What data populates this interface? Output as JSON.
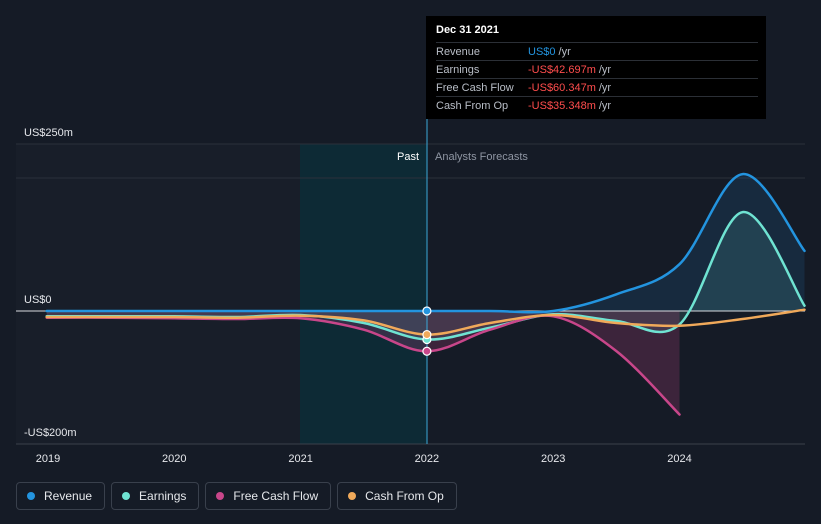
{
  "chart_data": {
    "type": "line",
    "y_axis": {
      "top_label": "US$250m",
      "zero_label": "US$0",
      "bottom_label": "-US$200m",
      "ylim": [
        -200,
        250
      ]
    },
    "x_ticks": [
      "2019",
      "2020",
      "2021",
      "2022",
      "2023",
      "2024"
    ],
    "regions": {
      "past_label": "Past",
      "forecast_label": "Analysts Forecasts"
    },
    "series": [
      {
        "name": "Revenue",
        "color": "#2394df",
        "x": [
          2018.99,
          2019.5,
          2020.0,
          2020.5,
          2021.0,
          2021.5,
          2022.0,
          2022.5,
          2023.0,
          2023.5,
          2024.0,
          2024.5,
          2024.99
        ],
        "y": [
          0,
          0,
          0,
          0,
          0,
          0,
          0,
          0,
          0,
          25,
          70,
          205,
          90
        ]
      },
      {
        "name": "Earnings",
        "color": "#6fe3d2",
        "x": [
          2018.99,
          2019.5,
          2020.0,
          2020.5,
          2021.0,
          2021.5,
          2022.0,
          2022.5,
          2023.0,
          2023.5,
          2024.0,
          2024.5,
          2024.99
        ],
        "y": [
          -8,
          -8,
          -8,
          -9,
          -6,
          -18,
          -42.7,
          -25,
          -5,
          -15,
          -20,
          148,
          8
        ]
      },
      {
        "name": "Free Cash Flow",
        "color": "#c8468a",
        "x": [
          2018.99,
          2019.5,
          2020.0,
          2020.5,
          2021.0,
          2021.5,
          2022.0,
          2022.5,
          2023.0,
          2023.5,
          2024.0
        ],
        "y": [
          -10,
          -10,
          -11,
          -12,
          -11,
          -28,
          -60.3,
          -28,
          -8,
          -60,
          -155
        ]
      },
      {
        "name": "Cash From Op",
        "color": "#f0a95a",
        "x": [
          2018.99,
          2019.5,
          2020.0,
          2020.5,
          2021.0,
          2021.5,
          2022.0,
          2022.5,
          2023.0,
          2023.5,
          2024.0,
          2024.5,
          2024.99
        ],
        "y": [
          -9,
          -9,
          -9,
          -10,
          -7,
          -14,
          -35.3,
          -18,
          -6,
          -18,
          -22,
          -12,
          2
        ]
      }
    ],
    "tooltip": {
      "date": "Dec 31 2021",
      "rows": [
        {
          "name": "Revenue",
          "value": "US$0",
          "unit": "/yr",
          "color": "#2394df"
        },
        {
          "name": "Earnings",
          "value": "-US$42.697m",
          "unit": "/yr",
          "color": "#ff4d4d"
        },
        {
          "name": "Free Cash Flow",
          "value": "-US$60.347m",
          "unit": "/yr",
          "color": "#ff4d4d"
        },
        {
          "name": "Cash From Op",
          "value": "-US$35.348m",
          "unit": "/yr",
          "color": "#ff4d4d"
        }
      ]
    },
    "legend_placement": "bottom-left"
  },
  "legend": [
    {
      "label": "Revenue",
      "color": "#2394df"
    },
    {
      "label": "Earnings",
      "color": "#6fe3d2"
    },
    {
      "label": "Free Cash Flow",
      "color": "#c8468a"
    },
    {
      "label": "Cash From Op",
      "color": "#f0a95a"
    }
  ]
}
